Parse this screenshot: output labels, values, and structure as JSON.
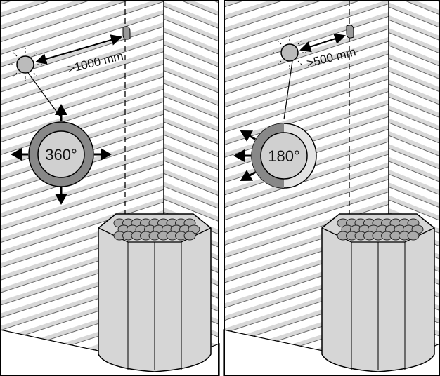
{
  "panels": [
    {
      "distance": ">1000 mm",
      "angle": "360°"
    },
    {
      "distance": ">500 mm",
      "angle": "180°"
    }
  ]
}
